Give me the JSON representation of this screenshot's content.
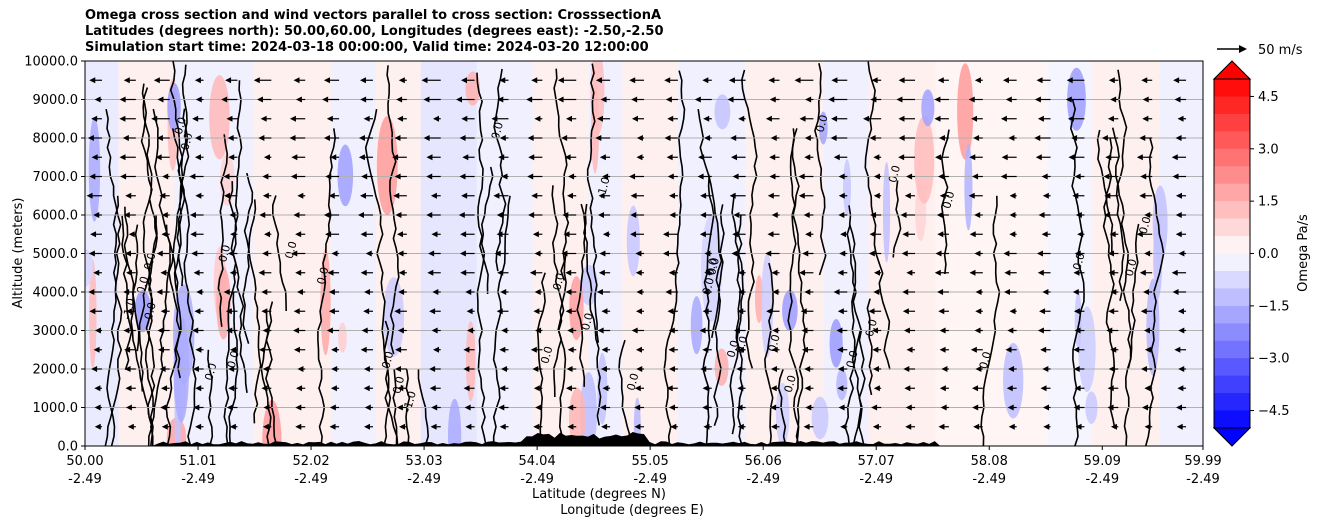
{
  "chart_data": {
    "type": "heatmap",
    "title_lines": [
      "Omega cross section and wind vectors parallel to cross section: CrosssectionA",
      "Latitudes (degrees north): 50.00,60.00, Longitudes (degrees east): -2.50,-2.50",
      "Simulation start time: 2024-03-18 00:00:00, Valid time: 2024-03-20 12:00:00"
    ],
    "ylabel": "Altitude (meters)",
    "xlabel_lat": "Latitude (degrees N)",
    "xlabel_lon": "Longitude (degrees E)",
    "ylim": [
      0,
      10000
    ],
    "yticks": [
      "0.0",
      "1000.0",
      "2000.0",
      "3000.0",
      "4000.0",
      "5000.0",
      "6000.0",
      "7000.0",
      "8000.0",
      "9000.0",
      "10000.0"
    ],
    "xlim": [
      50.0,
      59.99
    ],
    "xticks": [
      {
        "lat": "50.00",
        "lon": "-2.49"
      },
      {
        "lat": "51.01",
        "lon": "-2.49"
      },
      {
        "lat": "52.02",
        "lon": "-2.49"
      },
      {
        "lat": "53.03",
        "lon": "-2.49"
      },
      {
        "lat": "54.04",
        "lon": "-2.49"
      },
      {
        "lat": "55.05",
        "lon": "-2.49"
      },
      {
        "lat": "56.06",
        "lon": "-2.49"
      },
      {
        "lat": "57.07",
        "lon": "-2.49"
      },
      {
        "lat": "58.08",
        "lon": "-2.49"
      },
      {
        "lat": "59.09",
        "lon": "-2.49"
      },
      {
        "lat": "59.99",
        "lon": "-2.49"
      }
    ],
    "colorbar": {
      "label": "Omega Pa/s",
      "range": [
        -5,
        5
      ],
      "ticks": [
        "4.5",
        "3.0",
        "1.5",
        "0.0",
        "−1.5",
        "−3.0",
        "−4.5"
      ],
      "low_color": "#0000ff",
      "high_color": "#ff0000",
      "mid_color": "#ffffff"
    },
    "quiver_key": {
      "label": "50 m/s",
      "speed": 50
    },
    "contour_labels": [
      "0.0",
      "1.0",
      "-1.0"
    ],
    "grid": "horizontal",
    "background_bands": [
      {
        "from": 50.0,
        "to": 50.3,
        "omega": -0.4
      },
      {
        "from": 50.3,
        "to": 50.8,
        "omega": 0.3
      },
      {
        "from": 50.8,
        "to": 51.5,
        "omega": -0.3
      },
      {
        "from": 51.5,
        "to": 52.2,
        "omega": 0.3
      },
      {
        "from": 52.2,
        "to": 52.6,
        "omega": -0.3
      },
      {
        "from": 52.6,
        "to": 53.0,
        "omega": 0.3
      },
      {
        "from": 53.0,
        "to": 53.5,
        "omega": -0.5
      },
      {
        "from": 53.5,
        "to": 54.0,
        "omega": -0.3
      },
      {
        "from": 54.0,
        "to": 54.5,
        "omega": 0.3
      },
      {
        "from": 54.5,
        "to": 54.8,
        "omega": -0.3
      },
      {
        "from": 54.8,
        "to": 55.3,
        "omega": 0.3
      },
      {
        "from": 55.3,
        "to": 55.9,
        "omega": -0.3
      },
      {
        "from": 55.9,
        "to": 56.6,
        "omega": 0.3
      },
      {
        "from": 56.6,
        "to": 57.0,
        "omega": -0.3
      },
      {
        "from": 57.0,
        "to": 57.6,
        "omega": 0.3
      },
      {
        "from": 57.6,
        "to": 58.6,
        "omega": 0.2
      },
      {
        "from": 58.6,
        "to": 59.0,
        "omega": -0.2
      },
      {
        "from": 59.0,
        "to": 59.6,
        "omega": 0.3
      },
      {
        "from": 59.6,
        "to": 59.99,
        "omega": -0.3
      }
    ]
  }
}
